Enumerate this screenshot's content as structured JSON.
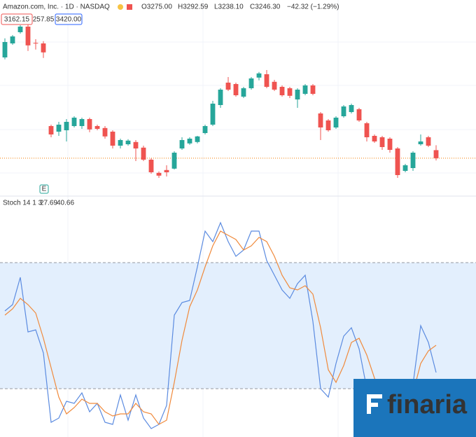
{
  "header": {
    "symbol": "Amazon.com, Inc. · 1D · NASDAQ",
    "ohlc": [
      "O3275.00",
      "H3292.59",
      "L3238.10",
      "C3246.30",
      "−42.32 (−1.29%)"
    ],
    "range_labels": [
      "3162.15",
      "257.85",
      "3420.00"
    ],
    "earnings_marker": "E",
    "logo": "finaria"
  },
  "chart_data": [
    {
      "type": "candlestick",
      "up_color": "#26a69a",
      "down_color": "#ef5350",
      "price_line": true,
      "price_line_color": "#f57c00",
      "ylim": [
        3116,
        3811
      ],
      "open": [
        3606,
        3656,
        3696,
        3716,
        3658,
        3656,
        3361,
        3341,
        3346,
        3361,
        3361,
        3386,
        3361,
        3354,
        3341,
        3291,
        3296,
        3304,
        3284,
        3241,
        3194,
        3204,
        3209,
        3281,
        3299,
        3304,
        3336,
        3366,
        3436,
        3516,
        3511,
        3466,
        3496,
        3534,
        3546,
        3519,
        3501,
        3496,
        3456,
        3476,
        3506,
        3406,
        3381,
        3356,
        3396,
        3411,
        3421,
        3371,
        3326,
        3321,
        3316,
        3281,
        3201,
        3211,
        3296,
        3321,
        3275.0
      ],
      "high": [
        3674,
        3686,
        3721,
        3724,
        3671,
        3664,
        3366,
        3376,
        3386,
        3396,
        3391,
        3391,
        3366,
        3361,
        3346,
        3316,
        3314,
        3311,
        3291,
        3246,
        3199,
        3221,
        3271,
        3321,
        3321,
        3326,
        3366,
        3451,
        3496,
        3536,
        3516,
        3501,
        3536,
        3554,
        3561,
        3526,
        3506,
        3501,
        3496,
        3511,
        3511,
        3411,
        3386,
        3396,
        3436,
        3441,
        3426,
        3376,
        3331,
        3326,
        3321,
        3286,
        3226,
        3271,
        3331,
        3326,
        3292.59
      ],
      "low": [
        3599,
        3651,
        3691,
        3629,
        3634,
        3604,
        3321,
        3326,
        3306,
        3356,
        3351,
        3339,
        3346,
        3316,
        3281,
        3281,
        3291,
        3236,
        3236,
        3191,
        3176,
        3181,
        3206,
        3276,
        3294,
        3299,
        3331,
        3361,
        3426,
        3486,
        3466,
        3461,
        3491,
        3524,
        3496,
        3486,
        3466,
        3461,
        3426,
        3471,
        3471,
        3311,
        3341,
        3351,
        3391,
        3406,
        3376,
        3306,
        3301,
        3276,
        3266,
        3176,
        3196,
        3201,
        3291,
        3286,
        3238.1
      ],
      "close": [
        3661,
        3681,
        3716,
        3649,
        3656,
        3624,
        3331,
        3366,
        3376,
        3391,
        3386,
        3349,
        3351,
        3324,
        3291,
        3311,
        3309,
        3281,
        3241,
        3196,
        3184,
        3196,
        3266,
        3311,
        3316,
        3324,
        3361,
        3441,
        3491,
        3491,
        3471,
        3496,
        3531,
        3549,
        3501,
        3491,
        3471,
        3469,
        3491,
        3506,
        3476,
        3356,
        3346,
        3391,
        3431,
        3436,
        3381,
        3321,
        3306,
        3286,
        3276,
        3186,
        3221,
        3266,
        3306,
        3291,
        3246.3
      ]
    },
    {
      "type": "line",
      "title": "Stoch 14 1 3",
      "ylim": [
        -3,
        111
      ],
      "bands": [
        80,
        20
      ],
      "band_color": "#e3effd",
      "series": [
        {
          "name": "%K",
          "color": "#5b8be0",
          "values": [
            57,
            60,
            73,
            47,
            48,
            37,
            4,
            6,
            14,
            13,
            18,
            9,
            13,
            4,
            3,
            17,
            5,
            17,
            6,
            1,
            3,
            12,
            55,
            61,
            62,
            78,
            95,
            90,
            99,
            90,
            83,
            86,
            95,
            95,
            81,
            74,
            67,
            63,
            70,
            74,
            52,
            20,
            16,
            32,
            45,
            49,
            39,
            20,
            15,
            12,
            9,
            9,
            23,
            22,
            50,
            42,
            27.69
          ]
        },
        {
          "name": "%D",
          "color": "#f08a3c",
          "values": [
            55,
            58,
            63,
            60,
            56,
            44,
            30,
            16,
            8,
            11,
            15,
            13,
            13,
            9,
            7,
            8,
            8,
            13,
            9,
            8,
            3,
            5,
            23,
            43,
            59,
            67,
            78,
            88,
            95,
            93,
            91,
            86,
            88,
            92,
            90,
            83,
            74,
            68,
            67,
            69,
            65,
            49,
            29,
            23,
            31,
            42,
            44,
            36,
            25,
            16,
            12,
            10,
            14,
            18,
            32,
            38,
            40.66
          ]
        }
      ]
    }
  ]
}
